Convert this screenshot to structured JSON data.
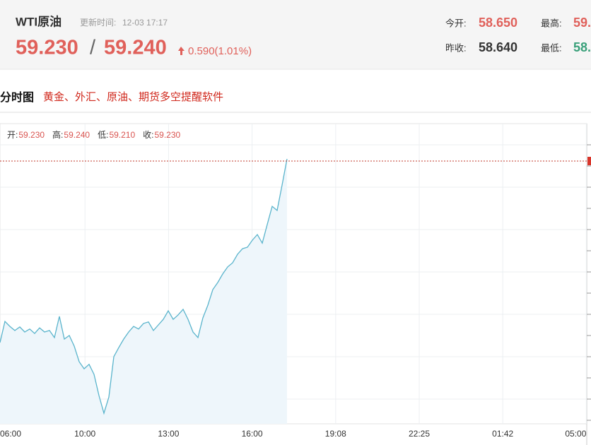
{
  "header": {
    "name": "WTI原油",
    "update_label": "更新时间:",
    "update_time": "12-03 17:17",
    "bid": "59.230",
    "separator": "/",
    "ask": "59.240",
    "change": "0.590(1.01%)",
    "stats": [
      {
        "label": "今开:",
        "value": "58.650"
      },
      {
        "label": "最高:",
        "value": "59."
      },
      {
        "label": "昨收:",
        "value": "58.640"
      },
      {
        "label": "最低:",
        "value": "58."
      }
    ]
  },
  "section": {
    "title": "分时图",
    "link": "黄金、外汇、原油、期货多空提醒软件"
  },
  "chart_data": {
    "type": "line",
    "info": [
      {
        "label": "开:",
        "value": "59.230"
      },
      {
        "label": "高:",
        "value": "59.240"
      },
      {
        "label": "低:",
        "value": "59.210"
      },
      {
        "label": "收:",
        "value": "59.230"
      }
    ],
    "xticks": [
      "06:00",
      "10:00",
      "13:00",
      "16:00",
      "19:08",
      "22:25",
      "01:42",
      "05:00"
    ],
    "series": [
      {
        "color": "#5ab4cc",
        "values": [
          58.616,
          58.688,
          58.671,
          58.657,
          58.669,
          58.652,
          58.662,
          58.647,
          58.666,
          58.652,
          58.657,
          58.633,
          58.705,
          58.628,
          58.64,
          58.604,
          58.551,
          58.527,
          58.542,
          58.508,
          58.436,
          58.376,
          58.431,
          58.568,
          58.599,
          58.628,
          58.652,
          58.671,
          58.662,
          58.681,
          58.686,
          58.657,
          58.676,
          58.695,
          58.724,
          58.695,
          58.71,
          58.729,
          58.695,
          58.652,
          58.633,
          58.7,
          58.743,
          58.796,
          58.82,
          58.849,
          58.873,
          58.887,
          58.916,
          58.935,
          58.94,
          58.964,
          58.983,
          58.954,
          59.017,
          59.079,
          59.065,
          59.151,
          59.24
        ]
      }
    ],
    "ylim": [
      58.34,
      59.36
    ],
    "grid": true
  }
}
